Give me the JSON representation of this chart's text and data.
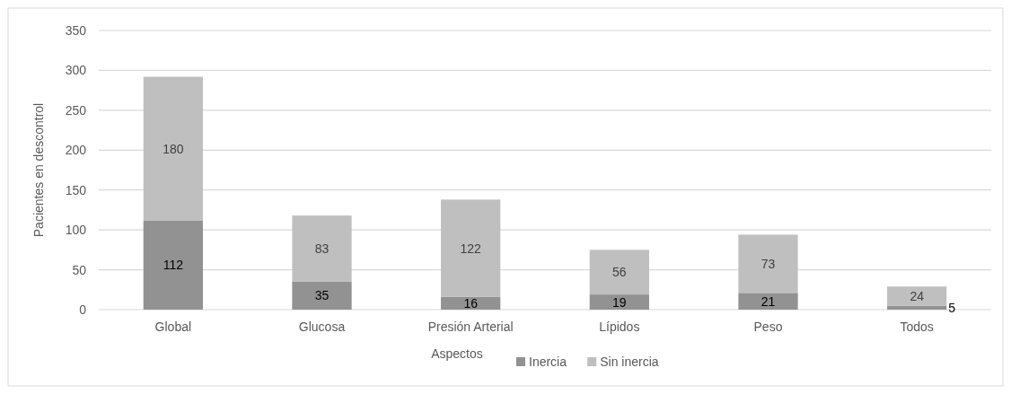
{
  "chart_data": {
    "type": "bar",
    "stacked": true,
    "xlabel": "Aspectos",
    "ylabel": "Pacientes en descontrol",
    "categories": [
      "Global",
      "Glucosa",
      "Presión Arterial",
      "Lípidos",
      "Peso",
      "Todos"
    ],
    "series": [
      {
        "name": "Inercia",
        "color": "#929292",
        "values": [
          112,
          35,
          16,
          19,
          21,
          5
        ]
      },
      {
        "name": "Sin inercia",
        "color": "#bfbfbf",
        "values": [
          180,
          83,
          122,
          56,
          73,
          24
        ]
      }
    ],
    "ylim": [
      0,
      350
    ],
    "yticks": [
      0,
      50,
      100,
      150,
      200,
      250,
      300,
      350
    ],
    "grid": "y",
    "legend": "bottom",
    "data_labels": true
  }
}
